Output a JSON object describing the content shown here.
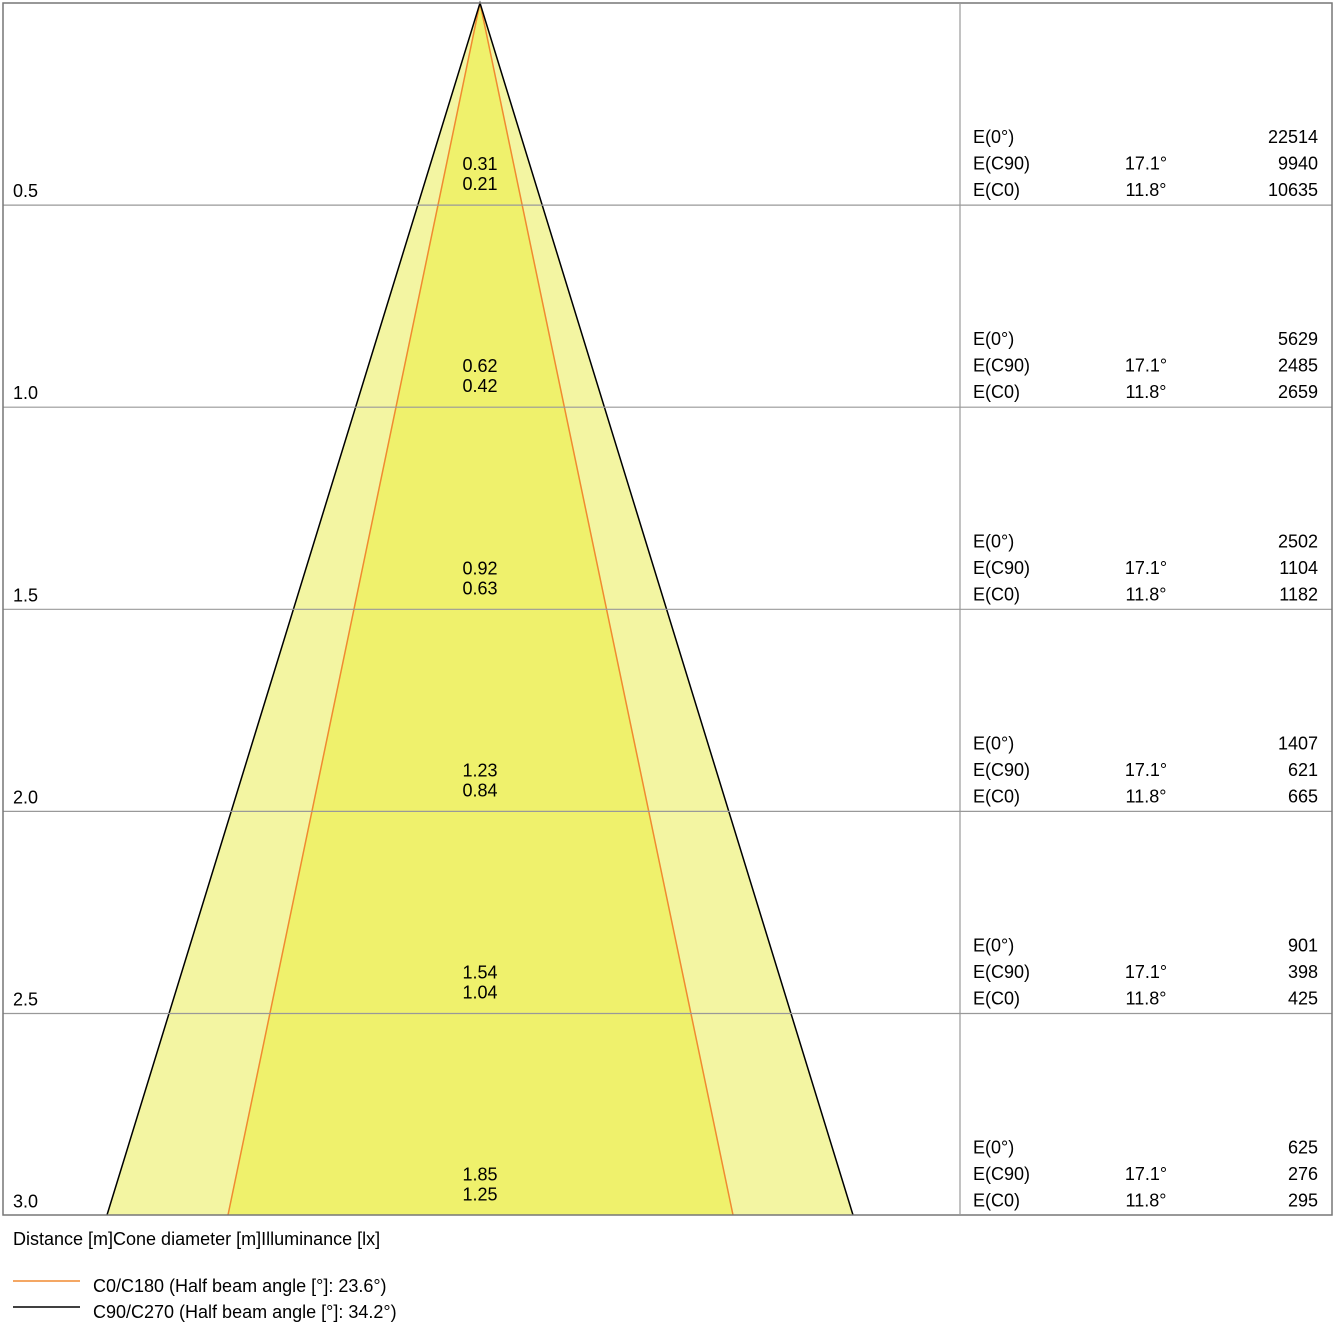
{
  "rows": [
    {
      "distance": "0.5",
      "diameters": [
        "0.31",
        "0.21"
      ],
      "lines": [
        {
          "label": "E(0°)",
          "value": "22514"
        },
        {
          "label": "E(C90)",
          "angle": "17.1°",
          "value": "9940"
        },
        {
          "label": "E(C0)",
          "angle": "11.8°",
          "value": "10635"
        }
      ]
    },
    {
      "distance": "1.0",
      "diameters": [
        "0.62",
        "0.42"
      ],
      "lines": [
        {
          "label": "E(0°)",
          "value": "5629"
        },
        {
          "label": "E(C90)",
          "angle": "17.1°",
          "value": "2485"
        },
        {
          "label": "E(C0)",
          "angle": "11.8°",
          "value": "2659"
        }
      ]
    },
    {
      "distance": "1.5",
      "diameters": [
        "0.92",
        "0.63"
      ],
      "lines": [
        {
          "label": "E(0°)",
          "value": "2502"
        },
        {
          "label": "E(C90)",
          "angle": "17.1°",
          "value": "1104"
        },
        {
          "label": "E(C0)",
          "angle": "11.8°",
          "value": "1182"
        }
      ]
    },
    {
      "distance": "2.0",
      "diameters": [
        "1.23",
        "0.84"
      ],
      "lines": [
        {
          "label": "E(0°)",
          "value": "1407"
        },
        {
          "label": "E(C90)",
          "angle": "17.1°",
          "value": "621"
        },
        {
          "label": "E(C0)",
          "angle": "11.8°",
          "value": "665"
        }
      ]
    },
    {
      "distance": "2.5",
      "diameters": [
        "1.54",
        "1.04"
      ],
      "lines": [
        {
          "label": "E(0°)",
          "value": "901"
        },
        {
          "label": "E(C90)",
          "angle": "17.1°",
          "value": "398"
        },
        {
          "label": "E(C0)",
          "angle": "11.8°",
          "value": "425"
        }
      ]
    },
    {
      "distance": "3.0",
      "diameters": [
        "1.85",
        "1.25"
      ],
      "lines": [
        {
          "label": "E(0°)",
          "value": "625"
        },
        {
          "label": "E(C90)",
          "angle": "17.1°",
          "value": "276"
        },
        {
          "label": "E(C0)",
          "angle": "11.8°",
          "value": "295"
        }
      ]
    }
  ],
  "caption": "Distance [m]Cone diameter [m]Illuminance [lx]",
  "legend": [
    {
      "label": "C0/C180 (Half beam angle [°]: 23.6°)"
    },
    {
      "label": "C90/C270 (Half beam angle [°]: 34.2°)"
    }
  ]
}
